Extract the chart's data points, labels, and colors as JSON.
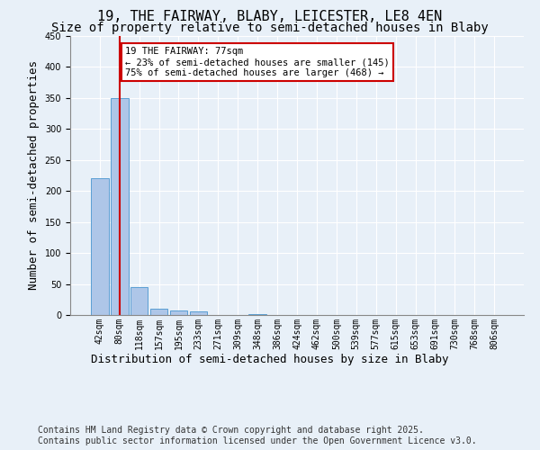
{
  "title_line1": "19, THE FAIRWAY, BLABY, LEICESTER, LE8 4EN",
  "title_line2": "Size of property relative to semi-detached houses in Blaby",
  "xlabel": "Distribution of semi-detached houses by size in Blaby",
  "ylabel": "Number of semi-detached properties",
  "categories": [
    "42sqm",
    "80sqm",
    "118sqm",
    "157sqm",
    "195sqm",
    "233sqm",
    "271sqm",
    "309sqm",
    "348sqm",
    "386sqm",
    "424sqm",
    "462sqm",
    "500sqm",
    "539sqm",
    "577sqm",
    "615sqm",
    "653sqm",
    "691sqm",
    "730sqm",
    "768sqm",
    "806sqm"
  ],
  "values": [
    220,
    350,
    45,
    10,
    7,
    6,
    0,
    0,
    2,
    0,
    0,
    0,
    0,
    0,
    0,
    0,
    0,
    0,
    0,
    0,
    0
  ],
  "bar_color": "#aec6e8",
  "bar_edge_color": "#5a9fd4",
  "vline_x": 1,
  "vline_color": "#cc0000",
  "annotation_text": "19 THE FAIRWAY: 77sqm\n← 23% of semi-detached houses are smaller (145)\n75% of semi-detached houses are larger (468) →",
  "annotation_box_color": "#cc0000",
  "annotation_fill": "#ffffff",
  "ylim": [
    0,
    450
  ],
  "yticks": [
    0,
    50,
    100,
    150,
    200,
    250,
    300,
    350,
    400,
    450
  ],
  "footer": "Contains HM Land Registry data © Crown copyright and database right 2025.\nContains public sector information licensed under the Open Government Licence v3.0.",
  "bg_color": "#e8f0f8",
  "plot_bg_color": "#e8f0f8",
  "grid_color": "#ffffff",
  "title_fontsize": 11,
  "subtitle_fontsize": 10,
  "tick_fontsize": 7,
  "label_fontsize": 9,
  "footer_fontsize": 7
}
